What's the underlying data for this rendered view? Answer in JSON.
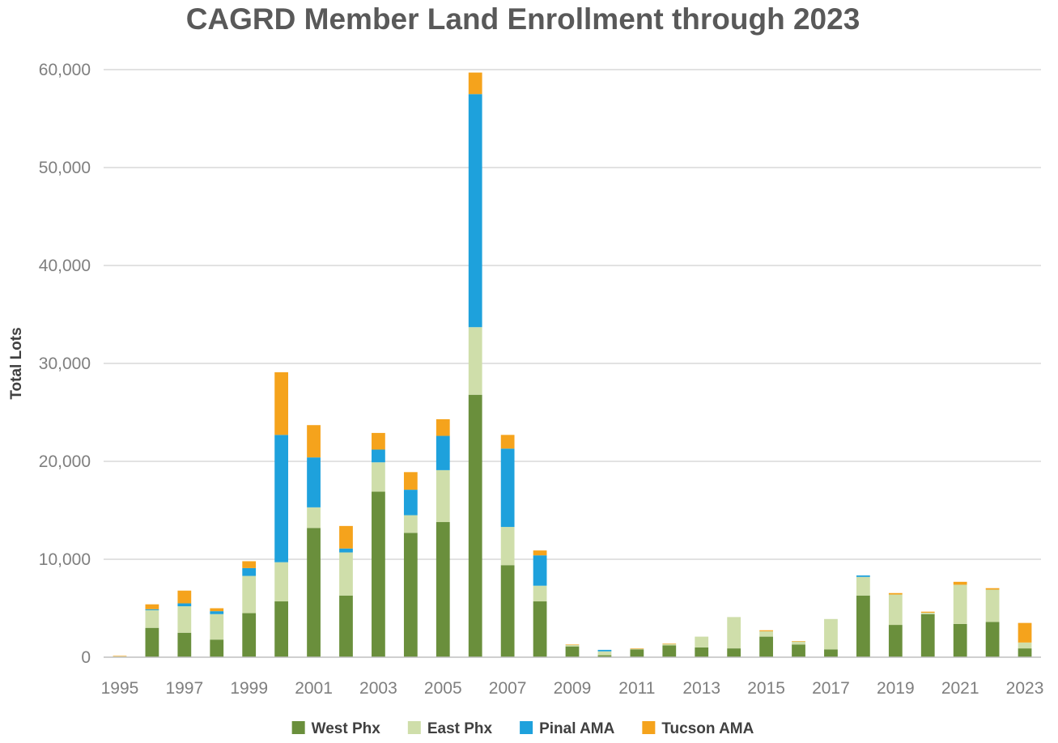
{
  "chart_data": {
    "type": "bar",
    "stacked": true,
    "title": "CAGRD Member Land Enrollment through 2023",
    "ylabel": "Total Lots",
    "xlabel": "",
    "ylim": [
      0,
      60000
    ],
    "yticks": [
      0,
      10000,
      20000,
      30000,
      40000,
      50000,
      60000
    ],
    "ytick_labels": [
      "0",
      "10,000",
      "20,000",
      "30,000",
      "40,000",
      "50,000",
      "60,000"
    ],
    "categories": [
      "1995",
      "1996",
      "1997",
      "1998",
      "1999",
      "2000",
      "2001",
      "2002",
      "2003",
      "2004",
      "2005",
      "2006",
      "2007",
      "2008",
      "2009",
      "2010",
      "2011",
      "2012",
      "2013",
      "2014",
      "2015",
      "2016",
      "2017",
      "2018",
      "2019",
      "2020",
      "2021",
      "2022",
      "2023"
    ],
    "xtick_labels": [
      "1995",
      "1997",
      "1999",
      "2001",
      "2003",
      "2005",
      "2007",
      "2009",
      "2011",
      "2013",
      "2015",
      "2017",
      "2019",
      "2021",
      "2023"
    ],
    "grid": true,
    "legend_position": "bottom",
    "series": [
      {
        "name": "West Phx",
        "color": "#6a8f3c",
        "values": [
          50,
          3000,
          2500,
          1800,
          4500,
          5700,
          13200,
          6300,
          16900,
          12700,
          13800,
          26800,
          9400,
          5700,
          1100,
          200,
          800,
          1200,
          1000,
          900,
          2100,
          1300,
          800,
          6300,
          3300,
          4400,
          3400,
          3600,
          900
        ]
      },
      {
        "name": "East Phx",
        "color": "#cfdeaa",
        "values": [
          50,
          1800,
          2700,
          2600,
          3800,
          4000,
          2100,
          4400,
          3000,
          1800,
          5300,
          6900,
          3900,
          1600,
          150,
          400,
          50,
          150,
          1100,
          3200,
          550,
          300,
          3100,
          1900,
          3100,
          150,
          4000,
          3300,
          600
        ]
      },
      {
        "name": "Pinal AMA",
        "color": "#1ea1dc",
        "values": [
          0,
          100,
          300,
          300,
          800,
          13000,
          5100,
          400,
          1300,
          2600,
          3500,
          23800,
          8000,
          3100,
          0,
          150,
          0,
          0,
          0,
          0,
          0,
          0,
          0,
          150,
          0,
          0,
          0,
          0,
          0
        ]
      },
      {
        "name": "Tucson AMA",
        "color": "#f5a31c",
        "values": [
          50,
          500,
          1300,
          300,
          700,
          6400,
          3300,
          2300,
          1700,
          1800,
          1700,
          2200,
          1400,
          500,
          50,
          0,
          50,
          50,
          0,
          0,
          100,
          50,
          0,
          0,
          150,
          100,
          300,
          150,
          2000
        ]
      }
    ]
  }
}
